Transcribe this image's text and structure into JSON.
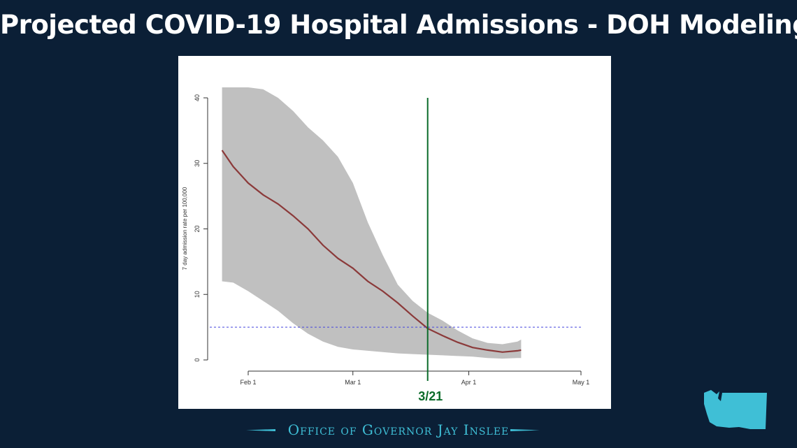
{
  "header": {
    "title": "Projected COVID-19 Hospital Admissions - DOH Modeling"
  },
  "footer": {
    "text": "Office of Governor Jay Inslee"
  },
  "colors": {
    "background": "#0b1f36",
    "accent": "#3fbfd6",
    "band": "#c0c0c0",
    "line": "#8b3a3a",
    "threshold": "#4444dd",
    "marker": "#0b6b2a"
  },
  "chart_data": {
    "type": "line",
    "ylabel": "7 day admission rate per 100,000",
    "xlabel": "",
    "ylim": [
      0,
      40
    ],
    "yticks": [
      "0",
      "10",
      "20",
      "30",
      "40"
    ],
    "xticks": [
      {
        "label": "Feb 1",
        "day": 32
      },
      {
        "label": "Mar 1",
        "day": 60
      },
      {
        "label": "Apr 1",
        "day": 91
      },
      {
        "label": "May 1",
        "day": 121
      }
    ],
    "x_domain_days": [
      32,
      121
    ],
    "series": [
      {
        "values_day": [
          25,
          28,
          32,
          36,
          40,
          44,
          48,
          52,
          56,
          60,
          64,
          68,
          72,
          76,
          80,
          84,
          88,
          92,
          96,
          100,
          104,
          105
        ],
        "median": [
          32,
          29.5,
          27,
          25.2,
          23.8,
          22,
          20,
          17.5,
          15.5,
          14,
          12,
          10.5,
          8.7,
          6.7,
          4.8,
          3.7,
          2.7,
          1.9,
          1.5,
          1.2,
          1.4,
          1.5
        ],
        "lower": [
          12,
          11.8,
          10.5,
          9,
          7.5,
          5.6,
          4,
          2.8,
          2,
          1.6,
          1.4,
          1.2,
          1.0,
          0.9,
          0.8,
          0.7,
          0.6,
          0.5,
          0.3,
          0.2,
          0.3,
          0.3
        ],
        "upper": [
          41.6,
          41.6,
          41.6,
          41.3,
          40,
          38,
          35.5,
          33.5,
          31,
          27,
          21,
          16,
          11.5,
          9,
          7.2,
          6,
          4.5,
          3.3,
          2.6,
          2.4,
          2.8,
          3.1
        ]
      }
    ],
    "threshold": {
      "value": 5
    },
    "marker": {
      "label": "3/21",
      "day": 80
    }
  }
}
